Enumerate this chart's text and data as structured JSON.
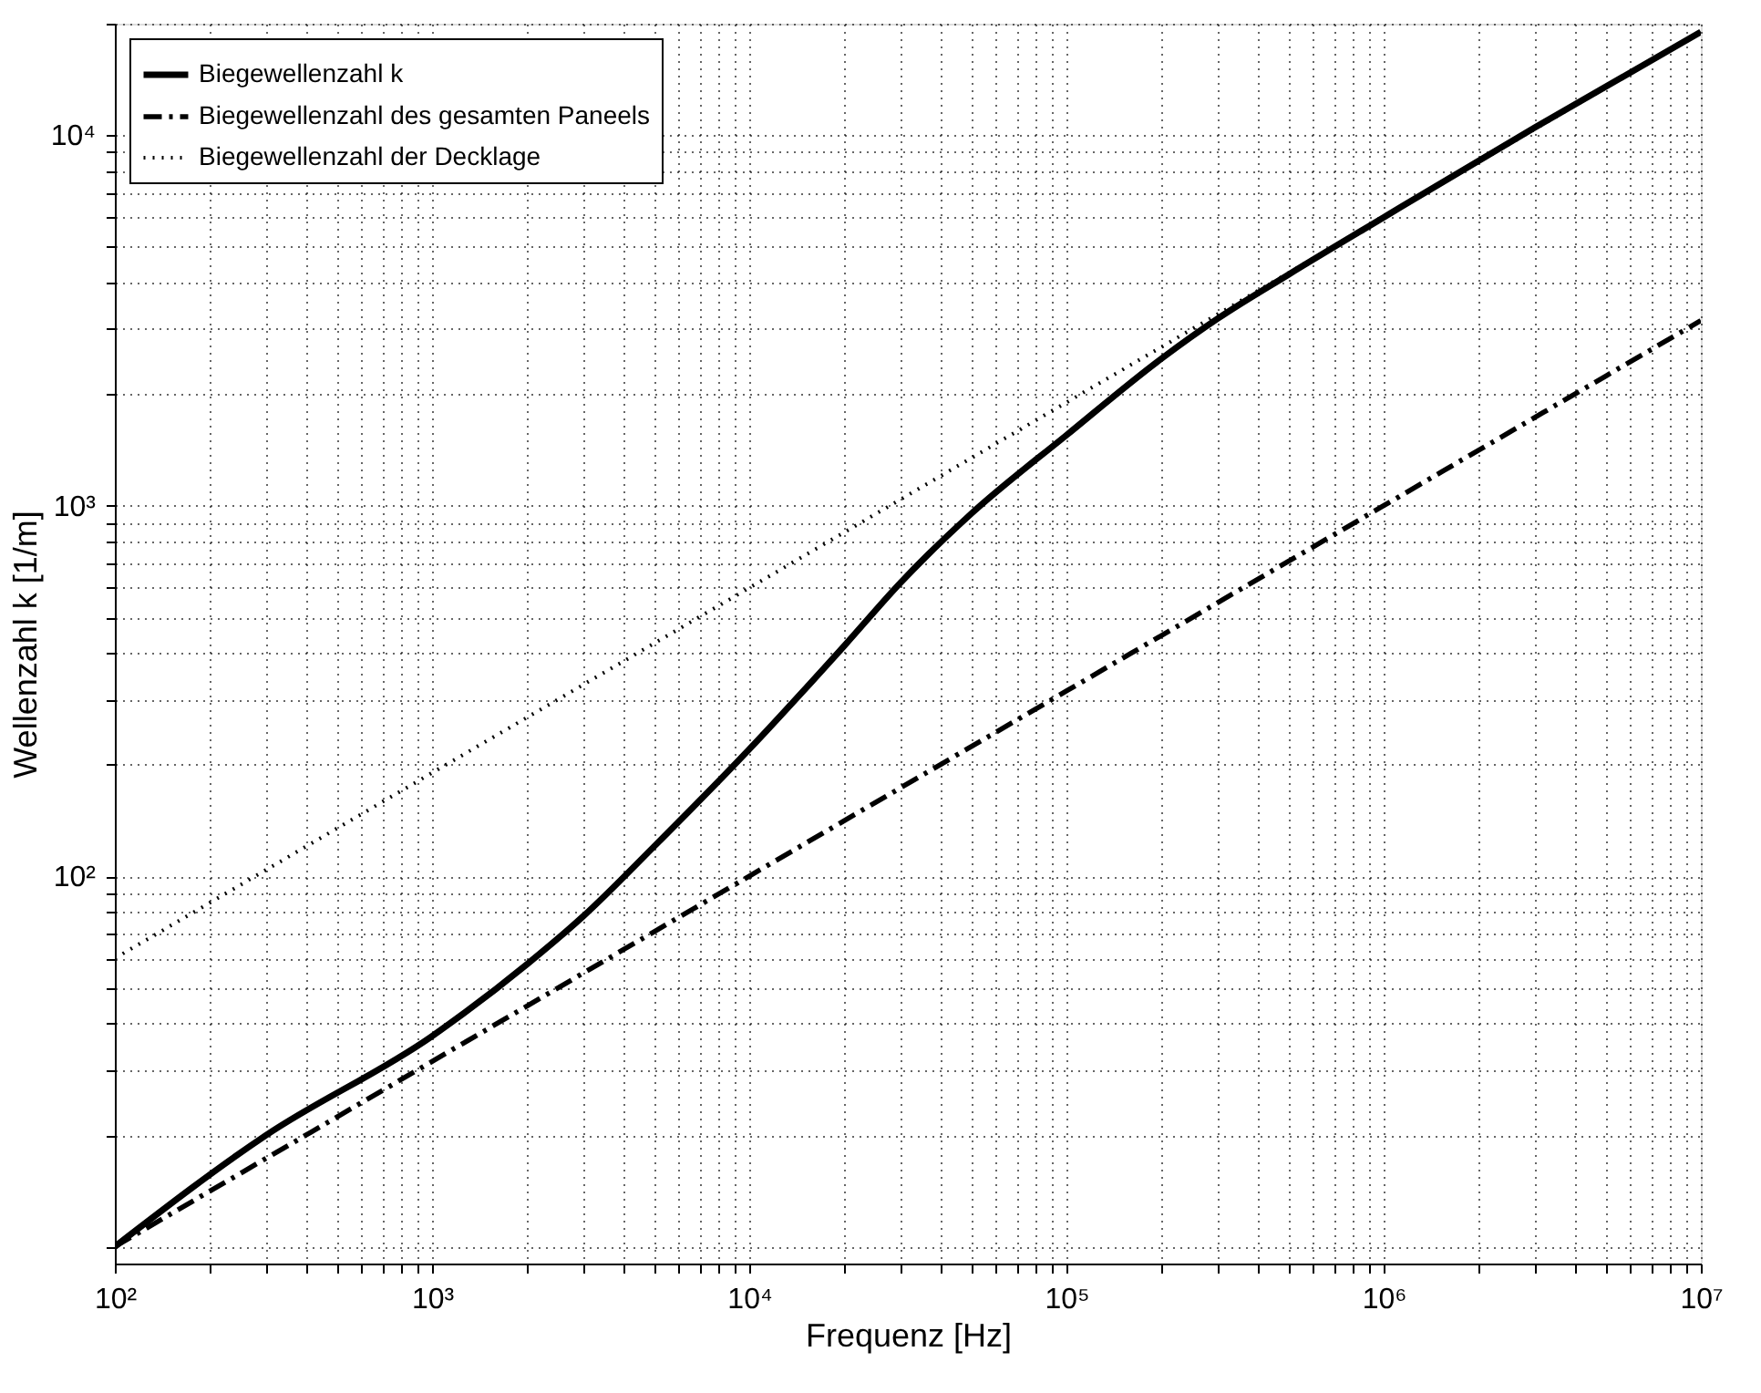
{
  "chart_data": {
    "type": "line",
    "xlabel": "Frequenz [Hz]",
    "ylabel": "Wellenzahl k [1/m]",
    "log": "xy",
    "grid": true,
    "legend": "top left",
    "marker": "none",
    "xlim": [
      100,
      10000000
    ],
    "ylim": [
      9,
      20000
    ],
    "xticks": [
      {
        "value": 100,
        "label": "10²"
      },
      {
        "value": 200,
        "label": null
      },
      {
        "value": 300,
        "label": null
      },
      {
        "value": 400,
        "label": null
      },
      {
        "value": 500,
        "label": null
      },
      {
        "value": 600,
        "label": null
      },
      {
        "value": 700,
        "label": null
      },
      {
        "value": 800,
        "label": null
      },
      {
        "value": 900,
        "label": null
      },
      {
        "value": 1000,
        "label": "10³"
      },
      {
        "value": 2000,
        "label": null
      },
      {
        "value": 3000,
        "label": null
      },
      {
        "value": 4000,
        "label": null
      },
      {
        "value": 5000,
        "label": null
      },
      {
        "value": 6000,
        "label": null
      },
      {
        "value": 7000,
        "label": null
      },
      {
        "value": 8000,
        "label": null
      },
      {
        "value": 9000,
        "label": null
      },
      {
        "value": 10000,
        "label": "10⁴"
      },
      {
        "value": 20000,
        "label": null
      },
      {
        "value": 30000,
        "label": null
      },
      {
        "value": 40000,
        "label": null
      },
      {
        "value": 50000,
        "label": null
      },
      {
        "value": 60000,
        "label": null
      },
      {
        "value": 70000,
        "label": null
      },
      {
        "value": 80000,
        "label": null
      },
      {
        "value": 90000,
        "label": null
      },
      {
        "value": 100000,
        "label": "10⁵"
      },
      {
        "value": 200000,
        "label": null
      },
      {
        "value": 300000,
        "label": null
      },
      {
        "value": 400000,
        "label": null
      },
      {
        "value": 500000,
        "label": null
      },
      {
        "value": 600000,
        "label": null
      },
      {
        "value": 700000,
        "label": null
      },
      {
        "value": 800000,
        "label": null
      },
      {
        "value": 900000,
        "label": null
      },
      {
        "value": 1000000,
        "label": "10⁶"
      },
      {
        "value": 2000000,
        "label": null
      },
      {
        "value": 3000000,
        "label": null
      },
      {
        "value": 4000000,
        "label": null
      },
      {
        "value": 5000000,
        "label": null
      },
      {
        "value": 6000000,
        "label": null
      },
      {
        "value": 7000000,
        "label": null
      },
      {
        "value": 8000000,
        "label": null
      },
      {
        "value": 9000000,
        "label": null
      },
      {
        "value": 10000000,
        "label": "10⁷"
      }
    ],
    "yticks": [
      {
        "value": 10,
        "label": null
      },
      {
        "value": 20,
        "label": null
      },
      {
        "value": 30,
        "label": null
      },
      {
        "value": 40,
        "label": null
      },
      {
        "value": 50,
        "label": null
      },
      {
        "value": 60,
        "label": null
      },
      {
        "value": 70,
        "label": null
      },
      {
        "value": 80,
        "label": null
      },
      {
        "value": 90,
        "label": null
      },
      {
        "value": 100,
        "label": "10²"
      },
      {
        "value": 200,
        "label": null
      },
      {
        "value": 300,
        "label": null
      },
      {
        "value": 400,
        "label": null
      },
      {
        "value": 500,
        "label": null
      },
      {
        "value": 600,
        "label": null
      },
      {
        "value": 700,
        "label": null
      },
      {
        "value": 800,
        "label": null
      },
      {
        "value": 900,
        "label": null
      },
      {
        "value": 1000,
        "label": "10³"
      },
      {
        "value": 2000,
        "label": null
      },
      {
        "value": 3000,
        "label": null
      },
      {
        "value": 4000,
        "label": null
      },
      {
        "value": 5000,
        "label": null
      },
      {
        "value": 6000,
        "label": null
      },
      {
        "value": 7000,
        "label": null
      },
      {
        "value": 8000,
        "label": null
      },
      {
        "value": 9000,
        "label": null
      },
      {
        "value": 10000,
        "label": "10⁴"
      },
      {
        "value": 20000,
        "label": null
      }
    ],
    "series": [
      {
        "name": "Biegewellenzahl k",
        "color": "#000000",
        "line_style": "solid",
        "x": [
          100,
          300,
          1000,
          2000,
          3000,
          5000,
          10000,
          20000,
          30000,
          50000,
          100000,
          200000,
          300000,
          500000,
          1000000,
          3000000,
          10000000
        ],
        "values": [
          10,
          20,
          37,
          58,
          78,
          120,
          220,
          420,
          620,
          950,
          1550,
          2500,
          3200,
          4200,
          6000,
          10500,
          19000
        ]
      },
      {
        "name": "Biegewellenzahl des gesamten Paneels",
        "color": "#000000",
        "line_style": "dashed",
        "x": [
          100,
          1000,
          10000,
          100000,
          1000000,
          10000000
        ],
        "values": [
          10,
          31.6,
          100,
          316,
          1000,
          3160
        ]
      },
      {
        "name": "Biegewellenzahl der Decklage",
        "color": "#000000",
        "line_style": "dotted",
        "x": [
          100,
          1000,
          10000,
          100000,
          1000000,
          10000000
        ],
        "values": [
          60,
          190,
          600,
          1900,
          6000,
          19000
        ]
      }
    ]
  }
}
